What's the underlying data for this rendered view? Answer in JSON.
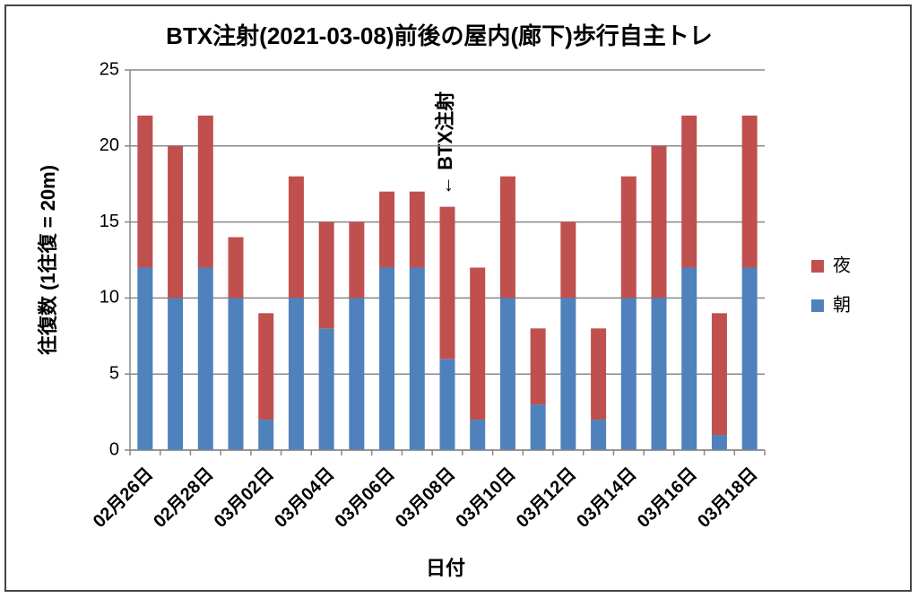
{
  "chart_data": {
    "type": "stacked_bar",
    "title": "BTX注射(2021-03-08)前後の屋内(廊下)歩行自主トレ",
    "y_label": "往復数 (1往復 = 20m)",
    "x_label": "日付",
    "annotation": "← BTX注射",
    "categories": [
      "02月26日",
      null,
      "02月28日",
      null,
      "03月02日",
      null,
      "03月04日",
      null,
      "03月06日",
      null,
      "03月08日",
      null,
      "03月10日",
      null,
      "03月12日",
      null,
      "03月14日",
      null,
      "03月16日",
      null,
      "03月18日"
    ],
    "series": [
      {
        "name": "朝",
        "color": "#4f81bd",
        "values": [
          12,
          10,
          12,
          10,
          2,
          10,
          8,
          10,
          12,
          12,
          6,
          2,
          10,
          3,
          10,
          2,
          10,
          10,
          12,
          1,
          12
        ]
      },
      {
        "name": "夜",
        "color": "#c0504d",
        "values": [
          10,
          10,
          10,
          4,
          7,
          8,
          7,
          5,
          5,
          5,
          10,
          10,
          8,
          5,
          5,
          6,
          8,
          10,
          10,
          8,
          10
        ]
      }
    ],
    "ylim": [
      0,
      25
    ],
    "yticks": [
      0,
      5,
      10,
      15,
      20,
      25
    ],
    "grid": true,
    "legend": "right"
  }
}
